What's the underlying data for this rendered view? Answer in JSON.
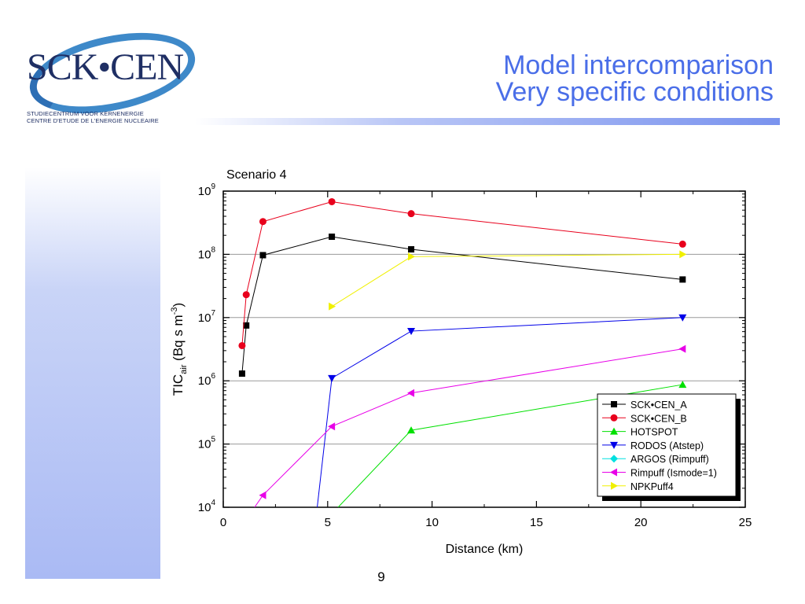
{
  "logo": {
    "text": "SCK•CEN",
    "line1": "STUDIECENTRUM VOOR KERNENERGIE",
    "line2": "CENTRE D'ETUDE DE L'ENERGIE NUCLEAIRE"
  },
  "slide": {
    "title_line1": "Model intercomparison",
    "title_line2": "Very specific conditions",
    "page_number": "9"
  },
  "colors": {
    "title": "#4a6ee8",
    "logo_blue": "#3e89c9"
  },
  "chart_data": {
    "type": "line",
    "title": "Scenario 4",
    "xlabel": "Distance (km)",
    "ylabel_main": "TIC",
    "ylabel_sub": "air",
    "ylabel_rest": " (Bq s m",
    "ylabel_sup": "-3",
    "ylabel_end": ")",
    "xlim": [
      0,
      25
    ],
    "ylim": [
      10000,
      1000000000
    ],
    "yscale": "log",
    "x_ticks": [
      0,
      5,
      10,
      15,
      20,
      25
    ],
    "y_tick_exponents": [
      4,
      5,
      6,
      7,
      8,
      9
    ],
    "y_tick_base": "10",
    "grid": "horizontal",
    "legend_position": "bottom-right",
    "series": [
      {
        "name": "SCK•CEN_A",
        "color": "#000000",
        "marker": "square",
        "x": [
          0.9,
          1.1,
          1.9,
          5.2,
          9.0,
          22.0
        ],
        "y": [
          1300000,
          7500000,
          97000000,
          190000000,
          120000000,
          40000000
        ]
      },
      {
        "name": "SCK•CEN_B",
        "color": "#e8001c",
        "marker": "circle",
        "x": [
          0.9,
          1.1,
          1.9,
          5.2,
          9.0,
          22.0
        ],
        "y": [
          3600000,
          23000000,
          330000000,
          680000000,
          440000000,
          145000000
        ]
      },
      {
        "name": "HOTSPOT",
        "color": "#00e000",
        "marker": "triangle-up",
        "x": [
          5.5,
          9.0,
          22.0
        ],
        "y": [
          10000,
          165000,
          870000
        ]
      },
      {
        "name": "RODOS (Atstep)",
        "color": "#0000e8",
        "marker": "triangle-down",
        "x": [
          4.5,
          5.2,
          9.0,
          22.0
        ],
        "y": [
          10000,
          1100000,
          6100000,
          10000000
        ]
      },
      {
        "name": "ARGOS (Rimpuff)",
        "color": "#00e0e0",
        "marker": "diamond",
        "x": [],
        "y": []
      },
      {
        "name": "Rimpuff (Ismode=1)",
        "color": "#e800e8",
        "marker": "triangle-left",
        "x": [
          1.5,
          1.9,
          5.2,
          9.0,
          22.0
        ],
        "y": [
          10000,
          15500,
          190000,
          640000,
          3200000
        ]
      },
      {
        "name": "NPKPuff4",
        "color": "#f0f000",
        "marker": "triangle-right",
        "x": [
          5.2,
          9.0,
          22.0
        ],
        "y": [
          15000000,
          92000000,
          100000000
        ]
      }
    ]
  }
}
